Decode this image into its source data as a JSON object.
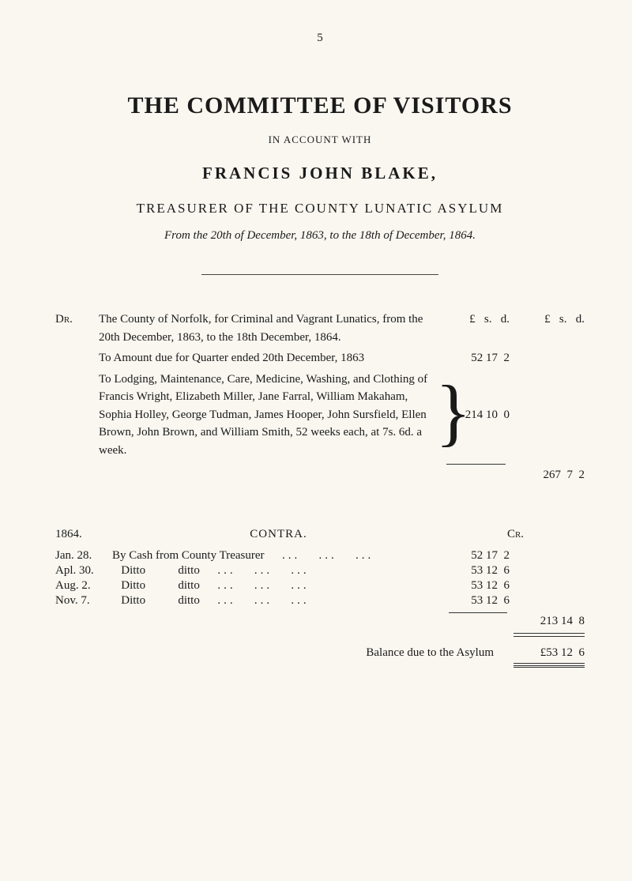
{
  "page_number": "5",
  "title": "THE COMMITTEE OF VISITORS",
  "subtitle_small": "IN ACCOUNT WITH",
  "subtitle_name": "FRANCIS JOHN BLAKE,",
  "subtitle_role": "TREASURER OF THE COUNTY LUNATIC ASYLUM",
  "subtitle_period": "From the 20th of December, 1863, to the 18th of December, 1864.",
  "dr": {
    "label": "Dr.",
    "col1_hdr": "£   s.   d.",
    "col2_hdr": "£   s.   d.",
    "line1": "The County of Norfolk, for Criminal and Vagrant Lunatics, from the 20th December, 1863, to the 18th December, 1864.",
    "line2": "To Amount due for Quarter ended 20th December, 1863",
    "line2_amt": "52 17  2",
    "line3": "To Lodging, Maintenance, Care, Medicine, Washing, and Clothing of Francis Wright, Elizabeth Miller, Jane Farral, William Makaham, Sophia Holley, George Tudman, James Hooper, John Sursfield, Ellen Brown, John Brown, and William Smith, 52 weeks each, at 7s. 6d. a week.",
    "line3_amt": "214 10  0",
    "total": "267  7  2"
  },
  "contra": {
    "year": "1864.",
    "heading": "CONTRA.",
    "cr": "Cr.",
    "rows": [
      {
        "date": "Jan. 28.",
        "entry": "By Cash from County Treasurer",
        "amt": "52 17  2"
      },
      {
        "date": "Apl. 30.",
        "entry": "   Ditto           ditto",
        "amt": "53 12  6"
      },
      {
        "date": "Aug.  2.",
        "entry": "   Ditto           ditto",
        "amt": "53 12  6"
      },
      {
        "date": "Nov.  7.",
        "entry": "   Ditto           ditto",
        "amt": "53 12  6"
      }
    ],
    "subtotal": "213 14  8",
    "balance_label": "Balance due to the Asylum",
    "balance_amt": "£53 12  6"
  },
  "style": {
    "bg": "#f9f7f0",
    "text": "#1a1a1a",
    "title_size": 30,
    "body_size": 15
  }
}
